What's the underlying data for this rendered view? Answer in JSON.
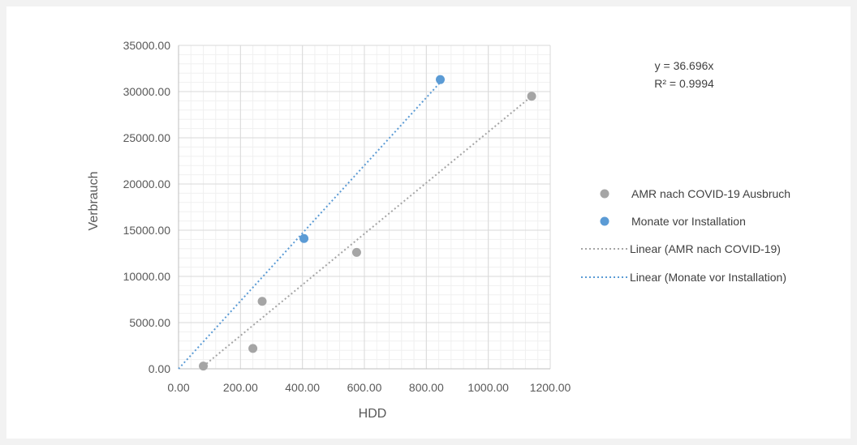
{
  "chart_data": {
    "type": "scatter",
    "xlabel": "HDD",
    "ylabel": "Verbrauch",
    "xlim": [
      0,
      1200
    ],
    "ylim": [
      0,
      35000
    ],
    "x_ticks": [
      0,
      200,
      400,
      600,
      800,
      1000,
      1200
    ],
    "y_ticks": [
      0,
      5000,
      10000,
      15000,
      20000,
      25000,
      30000,
      35000
    ],
    "x_tick_labels": [
      "0.00",
      "200.00",
      "400.00",
      "600.00",
      "800.00",
      "1000.00",
      "1200.00"
    ],
    "y_tick_labels": [
      "0.00",
      "5000.00",
      "10000.00",
      "15000.00",
      "20000.00",
      "25000.00",
      "30000.00",
      "35000.00"
    ],
    "grid": true,
    "legend_position": "right",
    "series": [
      {
        "name": "AMR nach COVID-19 Ausbruch",
        "color": "#a5a5a5",
        "points": [
          [
            80,
            300
          ],
          [
            240,
            2200
          ],
          [
            270,
            7300
          ],
          [
            575,
            12600
          ],
          [
            1140,
            29500
          ]
        ]
      },
      {
        "name": "Monate vor Installation",
        "color": "#5b9bd5",
        "points": [
          [
            405,
            14100
          ],
          [
            845,
            31300
          ]
        ]
      }
    ],
    "trendlines": [
      {
        "name": "Linear (AMR nach COVID-19)",
        "color": "#a5a5a5",
        "x": [
          70,
          1140
        ],
        "y": [
          0,
          29500
        ]
      },
      {
        "name": "Linear (Monate vor Installation)",
        "color": "#5b9bd5",
        "x": [
          0,
          845
        ],
        "y": [
          0,
          31000
        ]
      }
    ],
    "annotation": [
      "y = 36.696x",
      "R² = 0.9994"
    ]
  }
}
